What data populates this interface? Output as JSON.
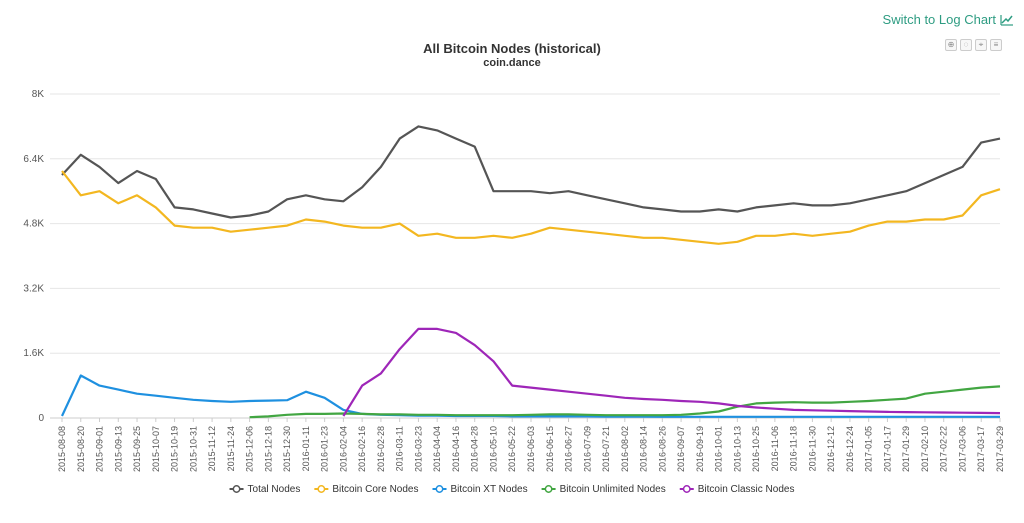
{
  "header": {
    "log_link_label": "Switch to Log Chart",
    "log_link_icon": "line-chart-icon",
    "toolbar_icons": [
      "zoom-in-icon",
      "zoom-reset-icon",
      "crosshair-icon",
      "menu-icon"
    ]
  },
  "chart_data": {
    "type": "line",
    "title": "All Bitcoin Nodes (historical)",
    "subtitle": "coin.dance",
    "xlabel": "",
    "ylabel": "",
    "ylim": [
      0,
      8000
    ],
    "y_ticks": [
      0,
      1600,
      3200,
      4800,
      6400,
      8000
    ],
    "y_tick_labels": [
      "0",
      "1.6K",
      "3.2K",
      "4.8K",
      "6.4K",
      "8K"
    ],
    "grid": true,
    "legend_position": "bottom",
    "x_tick_labels": [
      "2015-08-08",
      "2015-08-20",
      "2015-09-01",
      "2015-09-13",
      "2015-09-25",
      "2015-10-07",
      "2015-10-19",
      "2015-10-31",
      "2015-11-12",
      "2015-11-24",
      "2015-12-06",
      "2015-12-18",
      "2015-12-30",
      "2016-01-11",
      "2016-01-23",
      "2016-02-04",
      "2016-02-16",
      "2016-02-28",
      "2016-03-11",
      "2016-03-23",
      "2016-04-04",
      "2016-04-16",
      "2016-04-28",
      "2016-05-10",
      "2016-05-22",
      "2016-06-03",
      "2016-06-15",
      "2016-06-27",
      "2016-07-09",
      "2016-07-21",
      "2016-08-02",
      "2016-08-14",
      "2016-08-26",
      "2016-09-07",
      "2016-09-19",
      "2016-10-01",
      "2016-10-13",
      "2016-10-25",
      "2016-11-06",
      "2016-11-18",
      "2016-11-30",
      "2016-12-12",
      "2016-12-24",
      "2017-01-05",
      "2017-01-17",
      "2017-01-29",
      "2017-02-10",
      "2017-02-22",
      "2017-03-06",
      "2017-03-17",
      "2017-03-29"
    ],
    "x": [
      "2015-08-08",
      "2015-08-20",
      "2015-09-01",
      "2015-09-13",
      "2015-09-25",
      "2015-10-07",
      "2015-10-19",
      "2015-10-31",
      "2015-11-12",
      "2015-11-24",
      "2015-12-06",
      "2015-12-18",
      "2015-12-30",
      "2016-01-11",
      "2016-01-23",
      "2016-02-04",
      "2016-02-16",
      "2016-02-28",
      "2016-03-11",
      "2016-03-23",
      "2016-04-04",
      "2016-04-16",
      "2016-04-28",
      "2016-05-10",
      "2016-05-22",
      "2016-06-03",
      "2016-06-15",
      "2016-06-27",
      "2016-07-09",
      "2016-07-21",
      "2016-08-02",
      "2016-08-14",
      "2016-08-26",
      "2016-09-07",
      "2016-09-19",
      "2016-10-01",
      "2016-10-13",
      "2016-10-25",
      "2016-11-06",
      "2016-11-18",
      "2016-11-30",
      "2016-12-12",
      "2016-12-24",
      "2017-01-05",
      "2017-01-17",
      "2017-01-29",
      "2017-02-10",
      "2017-02-22",
      "2017-03-06",
      "2017-03-17",
      "2017-03-29"
    ],
    "series": [
      {
        "name": "Total Nodes",
        "color": "#555555",
        "values": [
          6000,
          6500,
          6200,
          5800,
          6100,
          5900,
          5200,
          5150,
          5050,
          4950,
          5000,
          5100,
          5400,
          5500,
          5400,
          5350,
          5700,
          6200,
          6900,
          7200,
          7100,
          6900,
          6700,
          5600,
          5600,
          5600,
          5550,
          5600,
          5500,
          5400,
          5300,
          5200,
          5150,
          5100,
          5100,
          5150,
          5100,
          5200,
          5250,
          5300,
          5250,
          5250,
          5300,
          5400,
          5500,
          5600,
          5800,
          6000,
          6200,
          6800,
          6900
        ]
      },
      {
        "name": "Bitcoin Core Nodes",
        "color": "#f3b720",
        "values": [
          6100,
          5500,
          5600,
          5300,
          5500,
          5200,
          4750,
          4700,
          4700,
          4600,
          4650,
          4700,
          4750,
          4900,
          4850,
          4750,
          4700,
          4700,
          4800,
          4500,
          4550,
          4450,
          4450,
          4500,
          4450,
          4550,
          4700,
          4650,
          4600,
          4550,
          4500,
          4450,
          4450,
          4400,
          4350,
          4300,
          4350,
          4500,
          4500,
          4550,
          4500,
          4550,
          4600,
          4750,
          4850,
          4850,
          4900,
          4900,
          5000,
          5500,
          5650
        ]
      },
      {
        "name": "Bitcoin XT Nodes",
        "color": "#1e90e0",
        "values": [
          50,
          1050,
          800,
          700,
          600,
          550,
          500,
          450,
          420,
          400,
          420,
          430,
          440,
          650,
          500,
          200,
          100,
          80,
          70,
          60,
          60,
          50,
          50,
          50,
          40,
          40,
          40,
          40,
          40,
          35,
          35,
          35,
          30,
          30,
          30,
          30,
          30,
          30,
          30,
          30,
          30,
          30,
          30,
          30,
          30,
          30,
          30,
          30,
          30,
          30,
          30
        ]
      },
      {
        "name": "Bitcoin Unlimited Nodes",
        "color": "#42a642",
        "values": [
          null,
          null,
          null,
          null,
          null,
          null,
          null,
          null,
          null,
          null,
          20,
          40,
          80,
          100,
          100,
          110,
          100,
          90,
          90,
          80,
          80,
          70,
          70,
          70,
          70,
          80,
          90,
          90,
          80,
          70,
          70,
          70,
          70,
          80,
          110,
          160,
          280,
          360,
          380,
          390,
          380,
          380,
          400,
          420,
          450,
          480,
          600,
          650,
          700,
          750,
          780
        ]
      },
      {
        "name": "Bitcoin Classic Nodes",
        "color": "#9e26b8",
        "values": [
          null,
          null,
          null,
          null,
          null,
          null,
          null,
          null,
          null,
          null,
          null,
          null,
          null,
          null,
          null,
          50,
          800,
          1100,
          1700,
          2200,
          2200,
          2100,
          1800,
          1400,
          800,
          750,
          700,
          650,
          600,
          550,
          500,
          470,
          450,
          420,
          400,
          360,
          300,
          260,
          230,
          200,
          190,
          180,
          170,
          160,
          150,
          145,
          140,
          135,
          130,
          125,
          120
        ]
      }
    ]
  }
}
